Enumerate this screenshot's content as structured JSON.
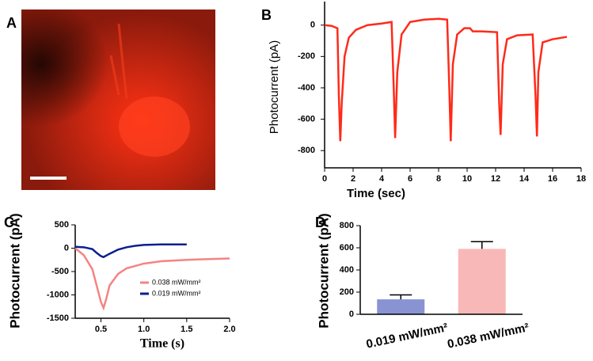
{
  "chart_data": [
    {
      "type": "image",
      "panel": "A"
    },
    {
      "type": "line",
      "panel": "B",
      "x_label": "Time (sec)",
      "y_label": "Photocurrent (pA)",
      "color": "#ff2a1a",
      "x": [
        0,
        0.5,
        0.9,
        1.0,
        1.1,
        1.2,
        1.4,
        1.7,
        2.2,
        3,
        4,
        4.7,
        4.85,
        4.95,
        5.1,
        5.4,
        6,
        7,
        8,
        8.6,
        8.75,
        8.85,
        9.0,
        9.3,
        9.8,
        10.2,
        10.4,
        11,
        12.1,
        12.25,
        12.35,
        12.5,
        12.8,
        13.5,
        14.6,
        14.8,
        14.9,
        15.0,
        15.3,
        16,
        17
      ],
      "values": [
        0,
        -5,
        -20,
        -450,
        -740,
        -500,
        -200,
        -80,
        -30,
        0,
        10,
        20,
        -400,
        -720,
        -300,
        -60,
        20,
        35,
        40,
        35,
        -400,
        -740,
        -250,
        -60,
        -20,
        -20,
        -40,
        -40,
        -45,
        -500,
        -700,
        -250,
        -90,
        -65,
        -60,
        -450,
        -710,
        -300,
        -110,
        -90,
        -75
      ],
      "xlim": [
        0,
        18
      ],
      "xticks": [
        0,
        2,
        4,
        6,
        8,
        10,
        12,
        14,
        16,
        18
      ],
      "ylim": [
        -910,
        150
      ],
      "yticks": [
        0,
        -200,
        -400,
        -600,
        -800
      ]
    },
    {
      "type": "line",
      "panel": "C",
      "x_label": "Time (s)",
      "y_label": "Photocurrent (pA)",
      "series": [
        {
          "name": "0.038 mW/mm²",
          "color": "#f48484",
          "x": [
            0.2,
            0.3,
            0.4,
            0.45,
            0.5,
            0.53,
            0.56,
            0.6,
            0.7,
            0.8,
            1.0,
            1.2,
            1.5,
            1.8,
            2.0
          ],
          "values": [
            0,
            -150,
            -450,
            -800,
            -1150,
            -1280,
            -1100,
            -800,
            -550,
            -430,
            -330,
            -280,
            -250,
            -230,
            -220
          ]
        },
        {
          "name": "0.019 mW/mm²",
          "color": "#0a1f8f",
          "x": [
            0.2,
            0.3,
            0.4,
            0.45,
            0.5,
            0.53,
            0.6,
            0.7,
            0.8,
            0.9,
            1.0,
            1.2,
            1.5
          ],
          "values": [
            30,
            20,
            -20,
            -100,
            -170,
            -190,
            -120,
            -30,
            20,
            50,
            70,
            80,
            80
          ]
        }
      ],
      "xlim": [
        0.2,
        2.0
      ],
      "xticks": [
        0.5,
        {
          "value": 1,
          "label": "1.0"
        },
        1.5,
        {
          "value": 2,
          "label": "2.0"
        }
      ],
      "ylim": [
        -1500,
        500
      ],
      "yticks": [
        500,
        0,
        -500,
        -1000,
        -1500
      ]
    },
    {
      "type": "bar",
      "panel": "D",
      "y_label": "Photocurrent (pA)",
      "categories": [
        "0.019 mW/mm²",
        "0.038 mW/mm²"
      ],
      "values": [
        135,
        590
      ],
      "errors": [
        40,
        65
      ],
      "colors": [
        "#8a93d2",
        "#f9b8b8"
      ],
      "ylim": [
        0,
        800
      ],
      "yticks": [
        0,
        200,
        400,
        600,
        800
      ]
    }
  ]
}
